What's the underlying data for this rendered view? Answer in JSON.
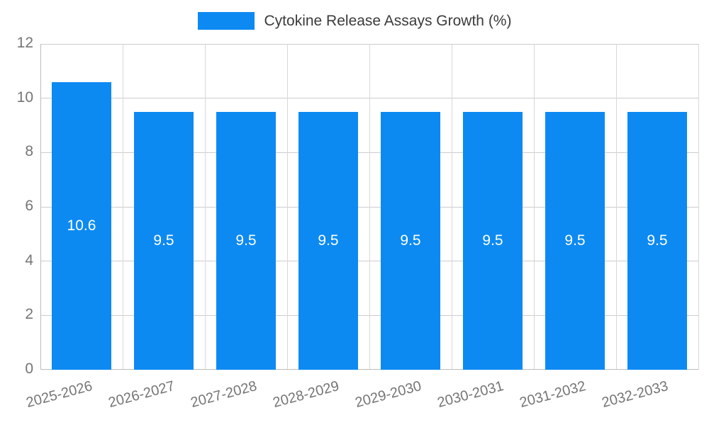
{
  "chart_data": {
    "type": "bar",
    "title": "Cytokine Release Assays Growth (%)",
    "categories": [
      "2025-2026",
      "2026-2027",
      "2027-2028",
      "2028-2029",
      "2029-2030",
      "2030-2031",
      "2031-2032",
      "2032-2033"
    ],
    "values": [
      10.6,
      9.5,
      9.5,
      9.5,
      9.5,
      9.5,
      9.5,
      9.5
    ],
    "data_labels": [
      "10.6",
      "9.5",
      "9.5",
      "9.5",
      "9.5",
      "9.5",
      "9.5",
      "9.5"
    ],
    "xlabel": "",
    "ylabel": "",
    "ylim": [
      0,
      12
    ],
    "ytick_step": 2,
    "ytick_labels": [
      "0",
      "2",
      "4",
      "6",
      "8",
      "10",
      "12"
    ],
    "grid": true,
    "legend_position": "top",
    "colors": {
      "bar": "#0d8af2",
      "bar_label_text": "#ffffff",
      "axis_text": "#757575",
      "legend_text": "#3b3b3b",
      "gridline": "#cccccc",
      "background": "#ffffff"
    }
  }
}
